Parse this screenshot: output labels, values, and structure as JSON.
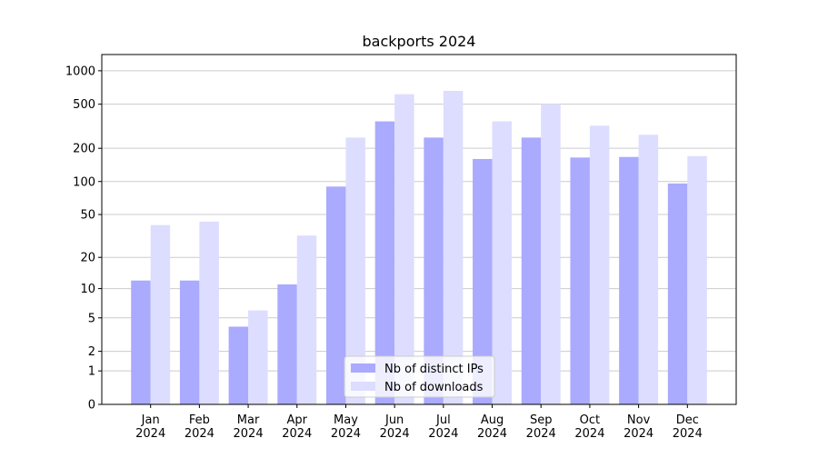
{
  "chart_data": {
    "type": "bar",
    "title": "backports 2024",
    "categories": [
      "Jan\n2024",
      "Feb\n2024",
      "Mar\n2024",
      "Apr\n2024",
      "May\n2024",
      "Jun\n2024",
      "Jul\n2024",
      "Aug\n2024",
      "Sep\n2024",
      "Oct\n2024",
      "Nov\n2024",
      "Dec\n2024"
    ],
    "series": [
      {
        "name": "Nb of distinct IPs",
        "color": "#aaaaff",
        "values": [
          12,
          12,
          4,
          11,
          90,
          350,
          250,
          160,
          250,
          165,
          167,
          96
        ]
      },
      {
        "name": "Nb of downloads",
        "color": "#ddddff",
        "values": [
          40,
          43,
          6,
          32,
          250,
          615,
          660,
          350,
          500,
          320,
          265,
          170
        ]
      }
    ],
    "yscale": "log1p",
    "ylim": [
      0,
      1400
    ],
    "yticks": [
      0,
      1,
      2,
      5,
      10,
      20,
      50,
      100,
      200,
      500,
      1000
    ],
    "grid": true,
    "legend": "lower center"
  }
}
